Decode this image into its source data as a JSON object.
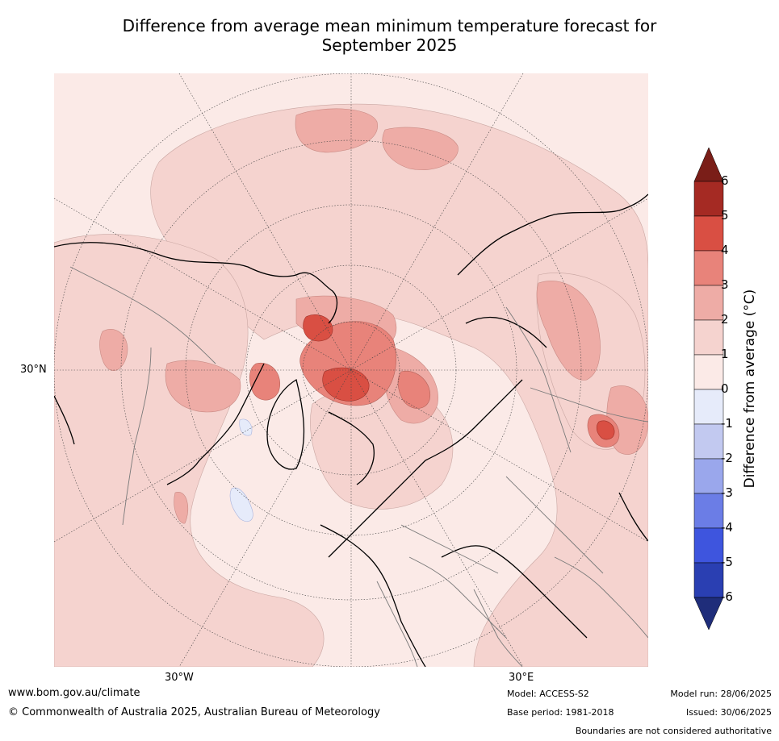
{
  "title_line1": "Difference from average mean minimum temperature forecast for",
  "title_line2": "September 2025",
  "map": {
    "lat_label_30n": "30°N",
    "lon_label_30w": "30°W",
    "lon_label_30e": "30°E"
  },
  "colorbar": {
    "label": "Difference from average (°C)",
    "ticks": [
      "6",
      "5",
      "4",
      "3",
      "2",
      "1",
      "0",
      "-1",
      "-2",
      "-3",
      "-4",
      "-5",
      "-6"
    ],
    "colors": {
      "gt6": "#7a1e18",
      "5_6": "#a52a23",
      "4_5": "#d94f43",
      "3_4": "#e8837a",
      "2_3": "#eeaca6",
      "1_2": "#f5d3cf",
      "0_1": "#fbeae7",
      "m1_0": "#e6ebfa",
      "m2_m1": "#c2c9f0",
      "m3_m2": "#9aa7ec",
      "m4_m3": "#6b7de6",
      "m5_m4": "#3e55de",
      "m6_m5": "#2a3fb2",
      "lt_m6": "#1f2d7a"
    }
  },
  "footer": {
    "website": "www.bom.gov.au/climate",
    "copyright": "© Commonwealth of Australia 2025, Australian Bureau of Meteorology",
    "model": "Model: ACCESS-S2",
    "base_period": "Base period: 1981-2018",
    "model_run": "Model run: 28/06/2025",
    "issued": "Issued: 30/06/2025",
    "boundaries": "Boundaries are not considered authoritative"
  }
}
